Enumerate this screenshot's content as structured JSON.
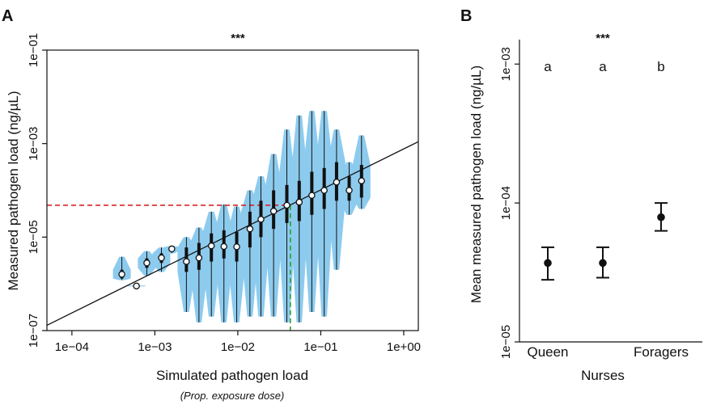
{
  "figure": {
    "panels": [
      "A",
      "B"
    ]
  },
  "chart_data": [
    {
      "panel": "A",
      "type": "violin",
      "xlabel": "Simulated pathogen load",
      "xlabel_sub": "(Prop. exposure dose)",
      "ylabel": "Measured pathogen load (ng/µL)",
      "significance": "***",
      "x_scale": "log",
      "y_scale": "log",
      "xlim": [
        5e-05,
        1.5
      ],
      "ylim": [
        1e-07,
        0.1
      ],
      "x_ticks": [
        {
          "value": 0.0001,
          "label": "1e−04"
        },
        {
          "value": 0.001,
          "label": "1e−03"
        },
        {
          "value": 0.01,
          "label": "1e−02"
        },
        {
          "value": 0.1,
          "label": "1e−01"
        },
        {
          "value": 1,
          "label": "1e+00"
        }
      ],
      "y_ticks": [
        {
          "value": 1e-07,
          "label": "1e−07"
        },
        {
          "value": 1e-05,
          "label": "1e−05"
        },
        {
          "value": 0.001,
          "label": "1e−03"
        },
        {
          "value": 0.1,
          "label": "1e−01"
        }
      ],
      "regression_line": {
        "x": [
          5e-05,
          1.5
        ],
        "y": [
          1.3e-07,
          0.0011
        ]
      },
      "threshold": {
        "x": 0.043,
        "y": 4.8e-05,
        "h_color": "#d62728",
        "v_color": "#2ca02c"
      },
      "violin_color": "#8dcbee",
      "bins": [
        {
          "x": 0.0004,
          "median": 1.6e-06,
          "q1": 1.3e-06,
          "q3": 2e-06,
          "min": 1.2e-06,
          "max": 3.8e-06
        },
        {
          "x": 0.0006,
          "median": 9e-07,
          "q1": 8.8e-07,
          "q3": 9.2e-07,
          "min": 8.8e-07,
          "max": 9.2e-07
        },
        {
          "x": 0.0008,
          "median": 2.8e-06,
          "q1": 2.2e-06,
          "q3": 3.5e-06,
          "min": 1.5e-06,
          "max": 5e-06
        },
        {
          "x": 0.0012,
          "median": 3.6e-06,
          "q1": 2.8e-06,
          "q3": 4.5e-06,
          "min": 1.8e-06,
          "max": 6e-06
        },
        {
          "x": 0.0016,
          "median": 5.6e-06,
          "q1": 5.3e-06,
          "q3": 6e-06,
          "min": 4.5e-06,
          "max": 6.5e-06
        },
        {
          "x": 0.0024,
          "median": 3e-06,
          "q1": 1.8e-06,
          "q3": 6e-06,
          "min": 2.5e-07,
          "max": 1e-05
        },
        {
          "x": 0.0034,
          "median": 3.6e-06,
          "q1": 2e-06,
          "q3": 7.5e-06,
          "min": 1.5e-07,
          "max": 1.6e-05
        },
        {
          "x": 0.0048,
          "median": 6.5e-06,
          "q1": 3e-06,
          "q3": 1.2e-05,
          "min": 2e-07,
          "max": 3.5e-05
        },
        {
          "x": 0.0068,
          "median": 6.3e-06,
          "q1": 3.5e-06,
          "q3": 1.4e-05,
          "min": 1.5e-07,
          "max": 5e-05
        },
        {
          "x": 0.0097,
          "median": 6.2e-06,
          "q1": 3e-06,
          "q3": 1.3e-05,
          "min": 1.5e-07,
          "max": 4.5e-05
        },
        {
          "x": 0.014,
          "median": 1.5e-05,
          "q1": 6e-06,
          "q3": 3.5e-05,
          "min": 2e-07,
          "max": 0.0001
        },
        {
          "x": 0.019,
          "median": 2.4e-05,
          "q1": 1e-05,
          "q3": 6e-05,
          "min": 2e-07,
          "max": 0.0002
        },
        {
          "x": 0.027,
          "median": 3.6e-05,
          "q1": 1.5e-05,
          "q3": 0.0001,
          "min": 2e-07,
          "max": 0.0006
        },
        {
          "x": 0.039,
          "median": 4.8e-05,
          "q1": 2e-05,
          "q3": 0.00013,
          "min": 1.5e-07,
          "max": 0.002
        },
        {
          "x": 0.055,
          "median": 5.6e-05,
          "q1": 2.2e-05,
          "q3": 0.00016,
          "min": 1.5e-07,
          "max": 0.004
        },
        {
          "x": 0.078,
          "median": 7.8e-05,
          "q1": 3e-05,
          "q3": 0.00025,
          "min": 2.5e-07,
          "max": 0.005
        },
        {
          "x": 0.11,
          "median": 0.0001,
          "q1": 4e-05,
          "q3": 0.0003,
          "min": 2e-07,
          "max": 0.005
        },
        {
          "x": 0.155,
          "median": 0.00015,
          "q1": 6e-05,
          "q3": 0.0004,
          "min": 2e-06,
          "max": 0.002
        },
        {
          "x": 0.22,
          "median": 0.0001,
          "q1": 6e-05,
          "q3": 0.0002,
          "min": 3e-05,
          "max": 0.0004
        },
        {
          "x": 0.31,
          "median": 0.00016,
          "q1": 7e-05,
          "q3": 0.00035,
          "min": 4e-05,
          "max": 0.0015
        }
      ]
    },
    {
      "panel": "B",
      "type": "errorbar",
      "xlabel": "Nurses",
      "ylabel": "Mean measured pathogen load (ng/µL)",
      "significance": "***",
      "y_scale": "log",
      "ylim": [
        1e-05,
        0.0015
      ],
      "y_ticks": [
        {
          "value": 1e-05,
          "label": "1e−05"
        },
        {
          "value": 0.0001,
          "label": "1e−04"
        },
        {
          "value": 0.001,
          "label": "1e−03"
        }
      ],
      "categories": [
        "Queen",
        "",
        "Foragers"
      ],
      "values": [
        3.7e-05,
        3.7e-05,
        7.9e-05
      ],
      "lower": [
        2.8e-05,
        2.9e-05,
        6.3e-05
      ],
      "upper": [
        4.8e-05,
        4.8e-05,
        0.0001
      ],
      "group_letters": [
        "a",
        "a",
        "b"
      ]
    }
  ]
}
